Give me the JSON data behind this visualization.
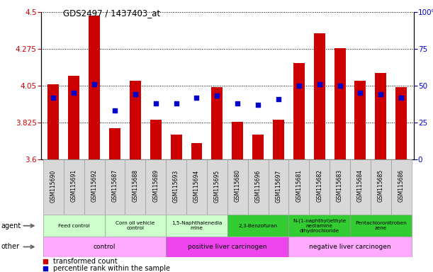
{
  "title": "GDS2497 / 1437403_at",
  "samples": [
    "GSM115690",
    "GSM115691",
    "GSM115692",
    "GSM115687",
    "GSM115688",
    "GSM115689",
    "GSM115693",
    "GSM115694",
    "GSM115695",
    "GSM115680",
    "GSM115696",
    "GSM115697",
    "GSM115681",
    "GSM115682",
    "GSM115683",
    "GSM115684",
    "GSM115685",
    "GSM115686"
  ],
  "transformed_count": [
    4.06,
    4.11,
    4.48,
    3.79,
    4.08,
    3.84,
    3.75,
    3.7,
    4.04,
    3.83,
    3.75,
    3.84,
    4.19,
    4.37,
    4.28,
    4.08,
    4.13,
    4.04
  ],
  "percentile_rank": [
    42,
    45,
    51,
    33,
    44,
    38,
    38,
    42,
    43,
    38,
    37,
    41,
    50,
    51,
    50,
    45,
    44,
    42
  ],
  "ylim_left": [
    3.6,
    4.5
  ],
  "ylim_right": [
    0,
    100
  ],
  "yticks_left": [
    3.6,
    3.825,
    4.05,
    4.275,
    4.5
  ],
  "yticks_right": [
    0,
    25,
    50,
    75,
    100
  ],
  "bar_color": "#cc0000",
  "dot_color": "#0000cc",
  "agent_groups": [
    {
      "label": "Feed control",
      "start": 0,
      "end": 3,
      "color": "#ccffcc"
    },
    {
      "label": "Corn oil vehicle\ncontrol",
      "start": 3,
      "end": 6,
      "color": "#ccffcc"
    },
    {
      "label": "1,5-Naphthalenedia\nmine",
      "start": 6,
      "end": 9,
      "color": "#ccffcc"
    },
    {
      "label": "2,3-Benzofuran",
      "start": 9,
      "end": 12,
      "color": "#33cc33"
    },
    {
      "label": "N-(1-naphthyl)ethyle\nnediamine\ndihydrochloride",
      "start": 12,
      "end": 15,
      "color": "#33cc33"
    },
    {
      "label": "Pentachloronitroben\nzene",
      "start": 15,
      "end": 18,
      "color": "#33cc33"
    }
  ],
  "other_groups": [
    {
      "label": "control",
      "start": 0,
      "end": 6,
      "color": "#ffaaff"
    },
    {
      "label": "positive liver carcinogen",
      "start": 6,
      "end": 12,
      "color": "#ee44ee"
    },
    {
      "label": "negative liver carcinogen",
      "start": 12,
      "end": 18,
      "color": "#ffaaff"
    }
  ],
  "bar_color_red": "#cc0000",
  "dot_color_blue": "#0000cc",
  "sample_bg_color": "#d8d8d8",
  "chart_border_color": "#000000",
  "legend_square_size": 25
}
